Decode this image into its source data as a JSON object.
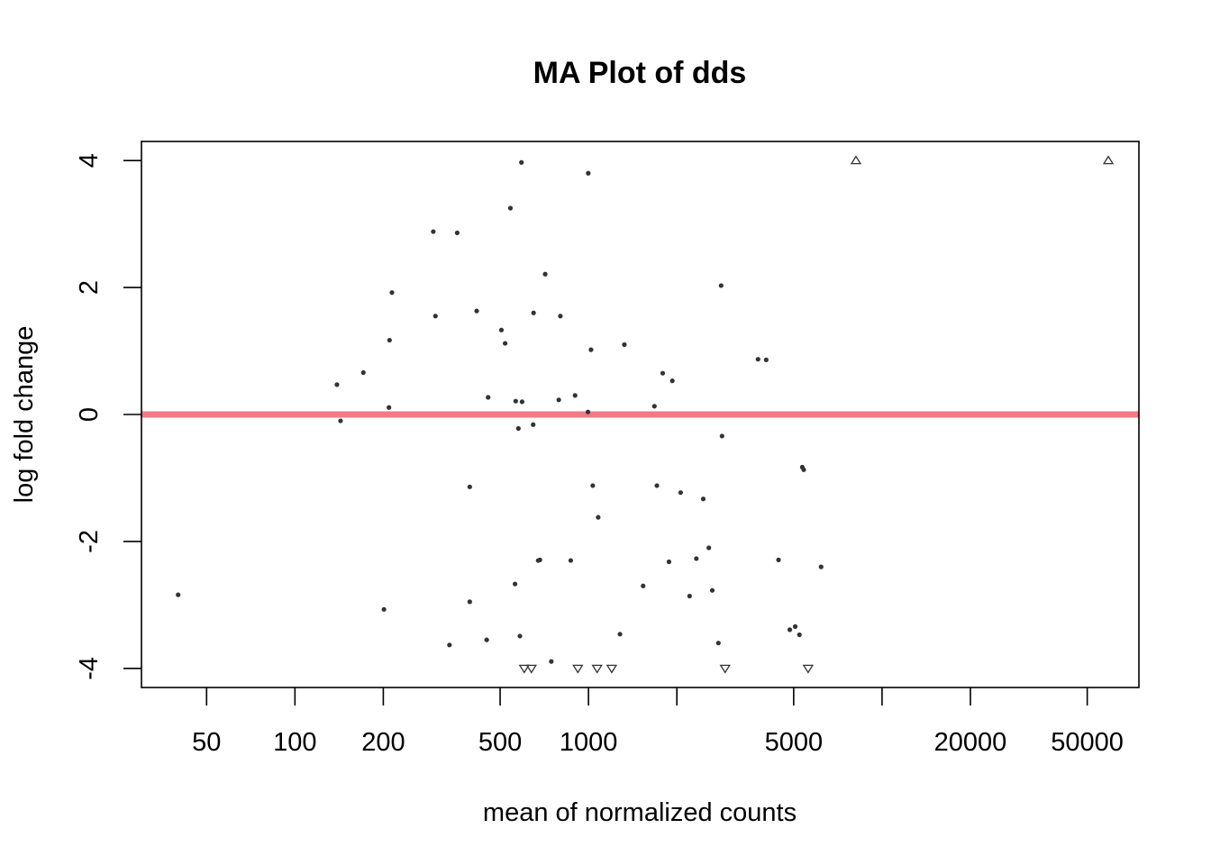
{
  "chart_data": {
    "type": "scatter",
    "title": "MA Plot of dds",
    "xlabel": "mean of normalized counts",
    "ylabel": "log fold change",
    "x_scale": "log",
    "xlim": [
      30,
      75000
    ],
    "ylim": [
      -4.3,
      4.3
    ],
    "x_ticks": [
      50,
      100,
      200,
      500,
      1000,
      2000,
      5000,
      10000,
      20000,
      50000
    ],
    "x_tick_labels": [
      "50",
      "100",
      "200",
      "500",
      "1000",
      "",
      "5000",
      "",
      "20000",
      "50000"
    ],
    "y_ticks": [
      -4,
      -2,
      0,
      2,
      4
    ],
    "y_tick_labels": [
      "-4",
      "-2",
      "0",
      "2",
      "4"
    ],
    "reference_line": {
      "y": 0,
      "color": "#f07a85"
    },
    "point_color": "#333333",
    "grid": false,
    "legend": "none",
    "points": [
      {
        "x": 40,
        "y": -2.84
      },
      {
        "x": 139,
        "y": 0.47
      },
      {
        "x": 143,
        "y": -0.1
      },
      {
        "x": 171,
        "y": 0.66
      },
      {
        "x": 201,
        "y": -3.07
      },
      {
        "x": 209,
        "y": 0.11
      },
      {
        "x": 210,
        "y": 1.17
      },
      {
        "x": 214,
        "y": 1.92
      },
      {
        "x": 296,
        "y": 2.88
      },
      {
        "x": 301,
        "y": 1.55
      },
      {
        "x": 336,
        "y": -3.63
      },
      {
        "x": 357,
        "y": 2.86
      },
      {
        "x": 394,
        "y": -1.14
      },
      {
        "x": 394,
        "y": -2.95
      },
      {
        "x": 416,
        "y": 1.63
      },
      {
        "x": 450,
        "y": -3.55
      },
      {
        "x": 455,
        "y": 0.27
      },
      {
        "x": 505,
        "y": 1.33
      },
      {
        "x": 520,
        "y": 1.12
      },
      {
        "x": 542,
        "y": 3.25
      },
      {
        "x": 562,
        "y": -2.67
      },
      {
        "x": 565,
        "y": 0.21
      },
      {
        "x": 577,
        "y": -0.22
      },
      {
        "x": 584,
        "y": -3.49
      },
      {
        "x": 591,
        "y": 3.97
      },
      {
        "x": 594,
        "y": 0.2
      },
      {
        "x": 648,
        "y": -0.16
      },
      {
        "x": 650,
        "y": 1.6
      },
      {
        "x": 674,
        "y": -2.3
      },
      {
        "x": 683,
        "y": -2.29
      },
      {
        "x": 712,
        "y": 2.21
      },
      {
        "x": 747,
        "y": -3.89
      },
      {
        "x": 792,
        "y": 0.23
      },
      {
        "x": 802,
        "y": 1.55
      },
      {
        "x": 870,
        "y": -2.3
      },
      {
        "x": 900,
        "y": 0.3
      },
      {
        "x": 996,
        "y": 0.04
      },
      {
        "x": 998,
        "y": 3.8
      },
      {
        "x": 1020,
        "y": 1.02
      },
      {
        "x": 1034,
        "y": -1.12
      },
      {
        "x": 1079,
        "y": -1.62
      },
      {
        "x": 1280,
        "y": -3.46
      },
      {
        "x": 1325,
        "y": 1.1
      },
      {
        "x": 1535,
        "y": -2.7
      },
      {
        "x": 1677,
        "y": 0.13
      },
      {
        "x": 1710,
        "y": -1.12
      },
      {
        "x": 1790,
        "y": 0.65
      },
      {
        "x": 1880,
        "y": -2.32
      },
      {
        "x": 1930,
        "y": 0.53
      },
      {
        "x": 2060,
        "y": -1.23
      },
      {
        "x": 2210,
        "y": -2.86
      },
      {
        "x": 2330,
        "y": -2.27
      },
      {
        "x": 2460,
        "y": -1.33
      },
      {
        "x": 2570,
        "y": -2.1
      },
      {
        "x": 2640,
        "y": -2.77
      },
      {
        "x": 2770,
        "y": -3.6
      },
      {
        "x": 2830,
        "y": 2.03
      },
      {
        "x": 2850,
        "y": -0.34
      },
      {
        "x": 3780,
        "y": 0.87
      },
      {
        "x": 4030,
        "y": 0.86
      },
      {
        "x": 4440,
        "y": -2.29
      },
      {
        "x": 4850,
        "y": -3.39
      },
      {
        "x": 5060,
        "y": -3.34
      },
      {
        "x": 5230,
        "y": -3.47
      },
      {
        "x": 5350,
        "y": -0.83
      },
      {
        "x": 5410,
        "y": -0.87
      },
      {
        "x": 6200,
        "y": -2.4
      }
    ],
    "outliers_up": [
      {
        "x": 8150,
        "y": 4
      },
      {
        "x": 59000,
        "y": 4
      }
    ],
    "outliers_down": [
      {
        "x": 604,
        "y": -4
      },
      {
        "x": 639,
        "y": -4
      },
      {
        "x": 920,
        "y": -4
      },
      {
        "x": 1070,
        "y": -4
      },
      {
        "x": 1200,
        "y": -4
      },
      {
        "x": 2920,
        "y": -4
      },
      {
        "x": 5600,
        "y": -4
      }
    ]
  }
}
